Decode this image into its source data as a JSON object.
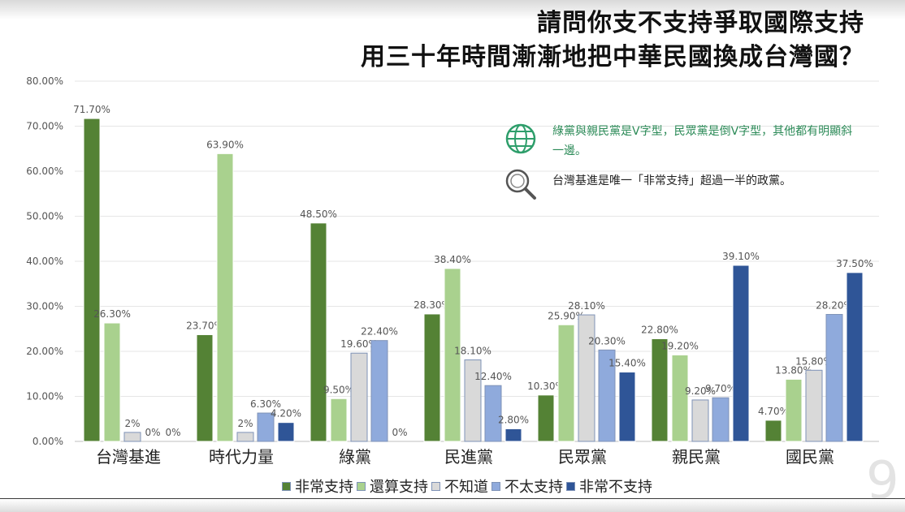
{
  "title_line1": "請問你支不支持爭取國際支持",
  "title_line2": "用三十年時間漸漸地把中華民國換成台灣國？",
  "notes": {
    "green": "綠黨與親民黨是V字型，民眾黨是倒V字型，其他都有明顯斜一邊。",
    "dark": "台灣基進是唯一「非常支持」超過一半的政黨。"
  },
  "icons": {
    "globe": "globe-icon",
    "search": "magnifier-icon"
  },
  "page_number": "9",
  "colors": {
    "strong_support": "#548235",
    "somewhat_support": "#a9d18e",
    "unknown": "#d9d9d9",
    "not_really": "#8faadc",
    "strong_oppose": "#2f5597"
  },
  "chart_data": {
    "type": "bar",
    "categories": [
      "台灣基進",
      "時代力量",
      "綠黨",
      "民進黨",
      "民眾黨",
      "親民黨",
      "國民黨"
    ],
    "series": [
      {
        "name": "非常支持",
        "values": [
          71.7,
          23.7,
          48.5,
          28.3,
          10.3,
          22.8,
          4.7
        ],
        "labels": [
          "71.70%",
          "23.70%",
          "48.50%",
          "28.30%",
          "10.30%",
          "22.80%",
          "4.70%"
        ]
      },
      {
        "name": "還算支持",
        "values": [
          26.3,
          63.9,
          9.5,
          38.4,
          25.9,
          19.2,
          13.8
        ],
        "labels": [
          "26.30%",
          "63.90%",
          "9.50%",
          "38.40%",
          "25.90%",
          "19.20%",
          "13.80%"
        ]
      },
      {
        "name": "不知道",
        "values": [
          2,
          2,
          19.6,
          18.1,
          28.1,
          9.2,
          15.8
        ],
        "labels": [
          "2%",
          "2%",
          "19.60%",
          "18.10%",
          "28.10%",
          "9.20%",
          "15.80%"
        ]
      },
      {
        "name": "不太支持",
        "values": [
          0,
          6.3,
          22.4,
          12.4,
          20.3,
          9.7,
          28.2
        ],
        "labels": [
          "0%",
          "6.30%",
          "22.40%",
          "12.40%",
          "20.30%",
          "9.70%",
          "28.20%"
        ]
      },
      {
        "name": "非常不支持",
        "values": [
          0,
          4.2,
          0,
          2.8,
          15.4,
          39.1,
          37.5
        ],
        "labels": [
          "0%",
          "4.20%",
          "0%",
          "2.80%",
          "15.40%",
          "39.10%",
          "37.50%"
        ]
      }
    ],
    "yticks": [
      "0.00%",
      "10.00%",
      "20.00%",
      "30.00%",
      "40.00%",
      "50.00%",
      "60.00%",
      "70.00%",
      "80.00%"
    ],
    "ylim": [
      0,
      80
    ],
    "grid": true,
    "legend": "bottom"
  }
}
